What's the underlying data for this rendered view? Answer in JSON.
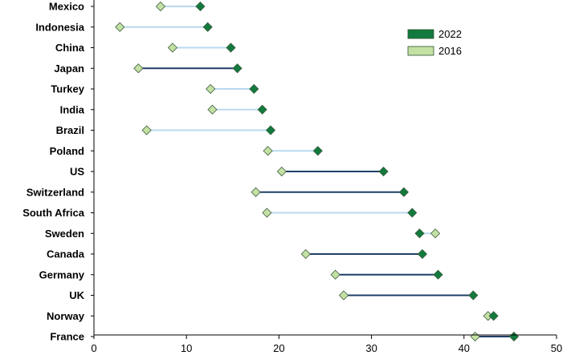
{
  "chart_data": {
    "type": "dumbbell",
    "title": "",
    "xlabel": "",
    "ylabel": "",
    "xlim": [
      0,
      50
    ],
    "xticks": [
      0,
      10,
      20,
      30,
      40,
      50
    ],
    "grid": false,
    "legend_position": "top-right",
    "categories": [
      "Mexico",
      "Indonesia",
      "China",
      "Japan",
      "Turkey",
      "India",
      "Brazil",
      "Poland",
      "US",
      "Switzerland",
      "South Africa",
      "Sweden",
      "Canada",
      "Germany",
      "UK",
      "Norway",
      "France"
    ],
    "series": [
      {
        "name": "2022",
        "color": "#127a3e",
        "values": [
          11.5,
          12.3,
          14.8,
          15.5,
          17.3,
          18.2,
          19.1,
          24.2,
          31.3,
          33.5,
          34.4,
          35.2,
          35.5,
          37.2,
          41.0,
          43.2,
          45.4
        ]
      },
      {
        "name": "2016",
        "color": "#c4e1a4",
        "values": [
          7.2,
          2.8,
          8.5,
          4.8,
          12.6,
          12.8,
          5.7,
          18.8,
          20.3,
          17.5,
          18.7,
          36.9,
          22.9,
          26.1,
          27.0,
          42.6,
          41.2
        ]
      }
    ],
    "connector_colors": [
      "#b8d9ef",
      "#b8d9ef",
      "#b8d9ef",
      "#1f3f66",
      "#b8d9ef",
      "#b8d9ef",
      "#b8d9ef",
      "#b8d9ef",
      "#1f3f66",
      "#1f3f66",
      "#b8d9ef",
      "#b8d9ef",
      "#1f3f66",
      "#1f3f66",
      "#1f3f66",
      "#b8d9ef",
      "#1f3f66"
    ]
  }
}
